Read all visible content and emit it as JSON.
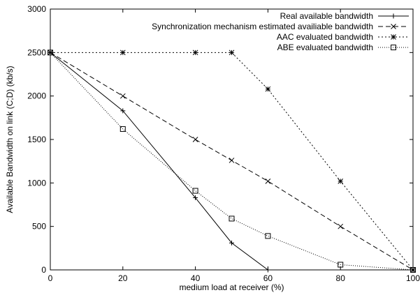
{
  "chart_data": {
    "type": "line",
    "title": "",
    "xlabel": "medium load at receiver (%)",
    "ylabel": "Available Bandwidth on link (C;D) (kb/s)",
    "xlim": [
      0,
      100
    ],
    "ylim": [
      0,
      3000
    ],
    "xticks": [
      0,
      20,
      40,
      60,
      80,
      100
    ],
    "yticks": [
      0,
      500,
      1000,
      1500,
      2000,
      2500,
      3000
    ],
    "grid": false,
    "legend_position": "top-right",
    "series": [
      {
        "name": "Real available bandwidth",
        "marker": "plus",
        "dash": "",
        "x": [
          0,
          20,
          40,
          50,
          60
        ],
        "y": [
          2500,
          1830,
          830,
          310,
          0
        ]
      },
      {
        "name": "Synchronization mechanism estimated availiable bandwidth",
        "marker": "cross",
        "dash": "7,4",
        "x": [
          0,
          20,
          40,
          50,
          60,
          80,
          100
        ],
        "y": [
          2500,
          2000,
          1500,
          1260,
          1020,
          500,
          0
        ]
      },
      {
        "name": "AAC evaluated bandwidth",
        "marker": "star",
        "dash": "2,3",
        "x": [
          0,
          20,
          40,
          50,
          60,
          80,
          100
        ],
        "y": [
          2500,
          2500,
          2500,
          2500,
          2080,
          1020,
          0
        ]
      },
      {
        "name": "ABE evaluated bandwidth",
        "marker": "square",
        "dash": "1,2",
        "x": [
          0,
          20,
          40,
          50,
          60,
          80,
          100
        ],
        "y": [
          2500,
          1620,
          910,
          590,
          390,
          60,
          0
        ]
      }
    ]
  }
}
